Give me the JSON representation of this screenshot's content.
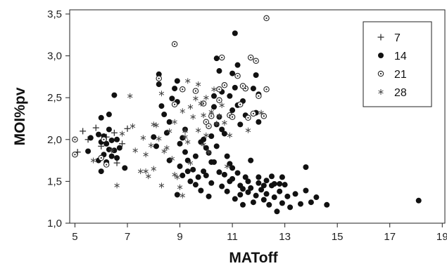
{
  "chart_data": {
    "type": "scatter",
    "title": "",
    "xlabel": "MAToff",
    "ylabel": "MOI%pv",
    "xlim": [
      4.8,
      19.1
    ],
    "ylim": [
      1.0,
      3.55
    ],
    "xticks": [
      5,
      7,
      9,
      11,
      13,
      15,
      17,
      19
    ],
    "xtick_labels": [
      "5",
      "7",
      "9",
      "11",
      "13",
      "15",
      "17",
      "19"
    ],
    "yticks": [
      1.0,
      1.5,
      2.0,
      2.5,
      3.0,
      3.5
    ],
    "ytick_labels": [
      "1,0",
      "1,5",
      "2,0",
      "2,5",
      "3,0",
      "3,5"
    ],
    "grid": false,
    "legend_position": "top-right",
    "series": [
      {
        "name": "7",
        "marker": "plus",
        "points": [
          [
            5.1,
            1.85
          ],
          [
            5.5,
            2.0
          ],
          [
            5.8,
            2.14
          ],
          [
            6.0,
            1.92
          ],
          [
            6.2,
            2.03
          ],
          [
            6.5,
            2.08
          ],
          [
            7.0,
            2.13
          ],
          [
            6.8,
            1.95
          ],
          [
            5.3,
            2.1
          ],
          [
            6.6,
            1.72
          ]
        ]
      },
      {
        "name": "14",
        "marker": "filled-circle",
        "points": [
          [
            5.5,
            1.86
          ],
          [
            5.6,
            2.02
          ],
          [
            5.9,
            2.06
          ],
          [
            5.9,
            1.75
          ],
          [
            6.0,
            1.62
          ],
          [
            6.0,
            1.97
          ],
          [
            6.1,
            2.04
          ],
          [
            6.1,
            1.82
          ],
          [
            6.2,
            1.73
          ],
          [
            6.2,
            1.95
          ],
          [
            6.3,
            2.12
          ],
          [
            6.3,
            1.88
          ],
          [
            6.4,
            1.8
          ],
          [
            6.4,
            1.99
          ],
          [
            6.5,
            1.87
          ],
          [
            6.6,
            2.0
          ],
          [
            6.6,
            1.78
          ],
          [
            6.7,
            1.9
          ],
          [
            6.3,
            2.3
          ],
          [
            6.0,
            2.26
          ],
          [
            6.5,
            2.53
          ],
          [
            6.9,
            1.66
          ],
          [
            8.0,
            2.03
          ],
          [
            8.1,
            1.92
          ],
          [
            8.2,
            2.78
          ],
          [
            8.2,
            2.66
          ],
          [
            8.3,
            2.4
          ],
          [
            8.4,
            2.3
          ],
          [
            8.5,
            2.08
          ],
          [
            8.6,
            2.21
          ],
          [
            8.7,
            2.49
          ],
          [
            8.8,
            2.61
          ],
          [
            8.9,
            2.7
          ],
          [
            8.9,
            2.45
          ],
          [
            9.0,
            1.68
          ],
          [
            9.1,
            1.57
          ],
          [
            9.2,
            1.85
          ],
          [
            9.3,
            1.75
          ],
          [
            9.4,
            1.5
          ],
          [
            9.5,
            1.64
          ],
          [
            9.6,
            1.46
          ],
          [
            9.7,
            1.55
          ],
          [
            9.8,
            1.39
          ],
          [
            9.9,
            1.62
          ],
          [
            10.0,
            1.57
          ],
          [
            10.1,
            1.84
          ],
          [
            10.2,
            1.48
          ],
          [
            10.3,
            1.73
          ],
          [
            10.4,
            1.92
          ],
          [
            10.5,
            1.61
          ],
          [
            10.6,
            1.44
          ],
          [
            10.7,
            1.58
          ],
          [
            10.8,
            1.38
          ],
          [
            10.9,
            1.71
          ],
          [
            11.0,
            1.53
          ],
          [
            11.1,
            1.29
          ],
          [
            11.2,
            1.6
          ],
          [
            11.3,
            1.45
          ],
          [
            11.4,
            1.22
          ],
          [
            11.5,
            1.55
          ],
          [
            11.6,
            1.37
          ],
          [
            11.7,
            1.42
          ],
          [
            11.8,
            1.25
          ],
          [
            11.9,
            1.33
          ],
          [
            12.0,
            1.48
          ],
          [
            12.1,
            1.4
          ],
          [
            12.2,
            1.28
          ],
          [
            12.3,
            1.35
          ],
          [
            12.4,
            1.22
          ],
          [
            12.5,
            1.45
          ],
          [
            12.6,
            1.31
          ],
          [
            12.7,
            1.14
          ],
          [
            12.8,
            1.38
          ],
          [
            12.9,
            1.24
          ],
          [
            13.0,
            1.46
          ],
          [
            13.1,
            1.32
          ],
          [
            13.2,
            1.19
          ],
          [
            13.4,
            1.35
          ],
          [
            13.6,
            1.23
          ],
          [
            13.8,
            1.39
          ],
          [
            14.0,
            1.25
          ],
          [
            14.2,
            1.31
          ],
          [
            14.6,
            1.22
          ],
          [
            18.1,
            1.27
          ],
          [
            13.8,
            1.67
          ],
          [
            9.8,
            1.97
          ],
          [
            10.2,
            2.04
          ],
          [
            10.4,
            2.18
          ],
          [
            10.5,
            2.27
          ],
          [
            10.6,
            2.12
          ],
          [
            10.0,
            1.9
          ],
          [
            9.6,
            1.8
          ],
          [
            10.8,
            1.8
          ],
          [
            10.9,
            2.52
          ],
          [
            11.0,
            2.79
          ],
          [
            11.0,
            2.35
          ],
          [
            11.1,
            2.62
          ],
          [
            11.1,
            3.27
          ],
          [
            11.2,
            2.89
          ],
          [
            11.2,
            2.41
          ],
          [
            11.3,
            2.18
          ],
          [
            11.4,
            2.46
          ],
          [
            11.5,
            2.61
          ],
          [
            11.5,
            2.29
          ],
          [
            11.8,
            2.61
          ],
          [
            11.9,
            2.77
          ],
          [
            11.9,
            2.32
          ],
          [
            12.0,
            2.21
          ],
          [
            12.0,
            2.54
          ],
          [
            10.3,
            2.52
          ],
          [
            10.4,
            2.97
          ],
          [
            10.5,
            2.82
          ],
          [
            10.6,
            2.57
          ],
          [
            10.3,
            2.39
          ],
          [
            9.2,
            2.12
          ],
          [
            9.0,
            1.95
          ],
          [
            9.1,
            2.02
          ],
          [
            10.9,
            1.5
          ],
          [
            11.3,
            1.34
          ],
          [
            11.6,
            1.5
          ],
          [
            12.0,
            1.55
          ],
          [
            12.3,
            1.51
          ],
          [
            12.5,
            1.56
          ],
          [
            12.9,
            1.55
          ],
          [
            12.8,
            1.47
          ],
          [
            11.4,
            1.41
          ],
          [
            10.1,
            1.32
          ],
          [
            10.2,
            1.73
          ],
          [
            9.9,
            2.0
          ],
          [
            8.9,
            1.34
          ],
          [
            8.6,
            1.75
          ],
          [
            9.3,
            1.62
          ],
          [
            10.7,
            2.07
          ],
          [
            11.7,
            1.75
          ],
          [
            12.2,
            1.45
          ],
          [
            12.6,
            1.47
          ],
          [
            11.0,
            1.66
          ]
        ]
      },
      {
        "name": "21",
        "marker": "dotted-circle",
        "points": [
          [
            5.0,
            2.0
          ],
          [
            5.0,
            1.82
          ],
          [
            6.1,
            2.0
          ],
          [
            6.2,
            1.7
          ],
          [
            6.0,
            1.78
          ],
          [
            8.2,
            2.73
          ],
          [
            8.8,
            3.14
          ],
          [
            8.8,
            2.42
          ],
          [
            9.1,
            2.6
          ],
          [
            9.6,
            2.58
          ],
          [
            9.9,
            2.43
          ],
          [
            10.0,
            2.21
          ],
          [
            10.2,
            2.28
          ],
          [
            10.5,
            2.6
          ],
          [
            10.6,
            2.98
          ],
          [
            10.7,
            2.65
          ],
          [
            10.9,
            2.29
          ],
          [
            11.0,
            2.27
          ],
          [
            11.2,
            2.76
          ],
          [
            11.3,
            2.42
          ],
          [
            11.5,
            2.61
          ],
          [
            11.6,
            2.26
          ],
          [
            11.7,
            2.98
          ],
          [
            11.8,
            2.31
          ],
          [
            11.9,
            2.94
          ],
          [
            12.0,
            2.52
          ],
          [
            12.2,
            2.28
          ],
          [
            12.3,
            2.6
          ],
          [
            12.3,
            3.45
          ],
          [
            10.5,
            2.47
          ],
          [
            10.1,
            2.16
          ],
          [
            11.4,
            2.64
          ]
        ]
      },
      {
        "name": "28",
        "marker": "asterisk",
        "points": [
          [
            5.7,
            1.75
          ],
          [
            6.4,
            1.87
          ],
          [
            6.6,
            1.45
          ],
          [
            6.8,
            2.07
          ],
          [
            7.1,
            2.52
          ],
          [
            7.2,
            2.16
          ],
          [
            7.3,
            1.87
          ],
          [
            7.5,
            1.62
          ],
          [
            7.6,
            2.02
          ],
          [
            7.7,
            1.82
          ],
          [
            7.8,
            1.56
          ],
          [
            7.9,
            1.93
          ],
          [
            8.0,
            1.65
          ],
          [
            8.1,
            2.17
          ],
          [
            8.2,
            2.01
          ],
          [
            8.3,
            2.55
          ],
          [
            8.3,
            1.45
          ],
          [
            8.4,
            1.86
          ],
          [
            8.5,
            1.9
          ],
          [
            8.6,
            2.1
          ],
          [
            8.7,
            1.77
          ],
          [
            8.8,
            2.21
          ],
          [
            8.9,
            1.55
          ],
          [
            9.0,
            1.43
          ],
          [
            9.1,
            2.34
          ],
          [
            9.2,
            2.1
          ],
          [
            9.3,
            1.97
          ],
          [
            9.4,
            1.72
          ],
          [
            9.5,
            2.27
          ],
          [
            9.6,
            2.49
          ],
          [
            9.7,
            2.11
          ],
          [
            9.8,
            2.43
          ],
          [
            9.9,
            2.29
          ],
          [
            10.0,
            2.05
          ],
          [
            10.1,
            1.85
          ],
          [
            10.2,
            2.33
          ],
          [
            10.3,
            2.6
          ],
          [
            10.4,
            2.19
          ],
          [
            10.5,
            2.28
          ],
          [
            10.6,
            2.41
          ],
          [
            10.7,
            2.2
          ],
          [
            10.8,
            1.68
          ],
          [
            9.1,
            1.33
          ],
          [
            9.3,
            2.7
          ],
          [
            9.7,
            2.66
          ],
          [
            8.0,
            2.18
          ],
          [
            7.7,
            1.62
          ],
          [
            10.0,
            2.5
          ],
          [
            12.1,
            2.32
          ],
          [
            11.6,
            2.11
          ],
          [
            10.9,
            2.05
          ],
          [
            9.4,
            2.39
          ],
          [
            8.8,
            1.58
          ],
          [
            9.9,
            1.94
          ],
          [
            9.2,
            2.03
          ]
        ]
      }
    ]
  }
}
